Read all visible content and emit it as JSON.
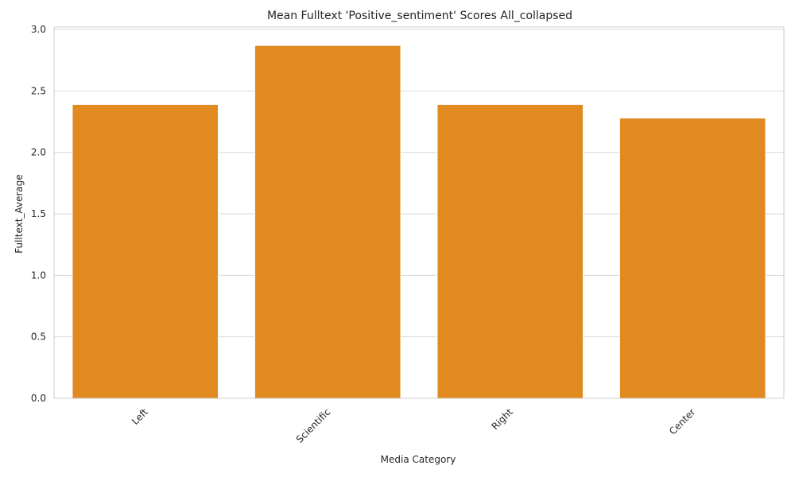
{
  "chart_data": {
    "type": "bar",
    "title": "Mean Fulltext 'Positive_sentiment' Scores All_collapsed",
    "xlabel": "Media Category",
    "ylabel": "Fulltext_Average",
    "categories": [
      "Left",
      "Scientific",
      "Right",
      "Center"
    ],
    "values": [
      2.39,
      2.87,
      2.39,
      2.28
    ],
    "ylim": [
      0,
      3.02
    ],
    "yticks": [
      "0.0",
      "0.5",
      "1.0",
      "1.5",
      "2.0",
      "2.5",
      "3.0"
    ],
    "grid": true,
    "xtick_rotation": "45 degrees",
    "colors": {
      "bar": "#e08a1f",
      "bar_edge": "#ffffff",
      "grid": "#d9d9d9",
      "spine": "#cccccc",
      "text": "#262626"
    }
  }
}
